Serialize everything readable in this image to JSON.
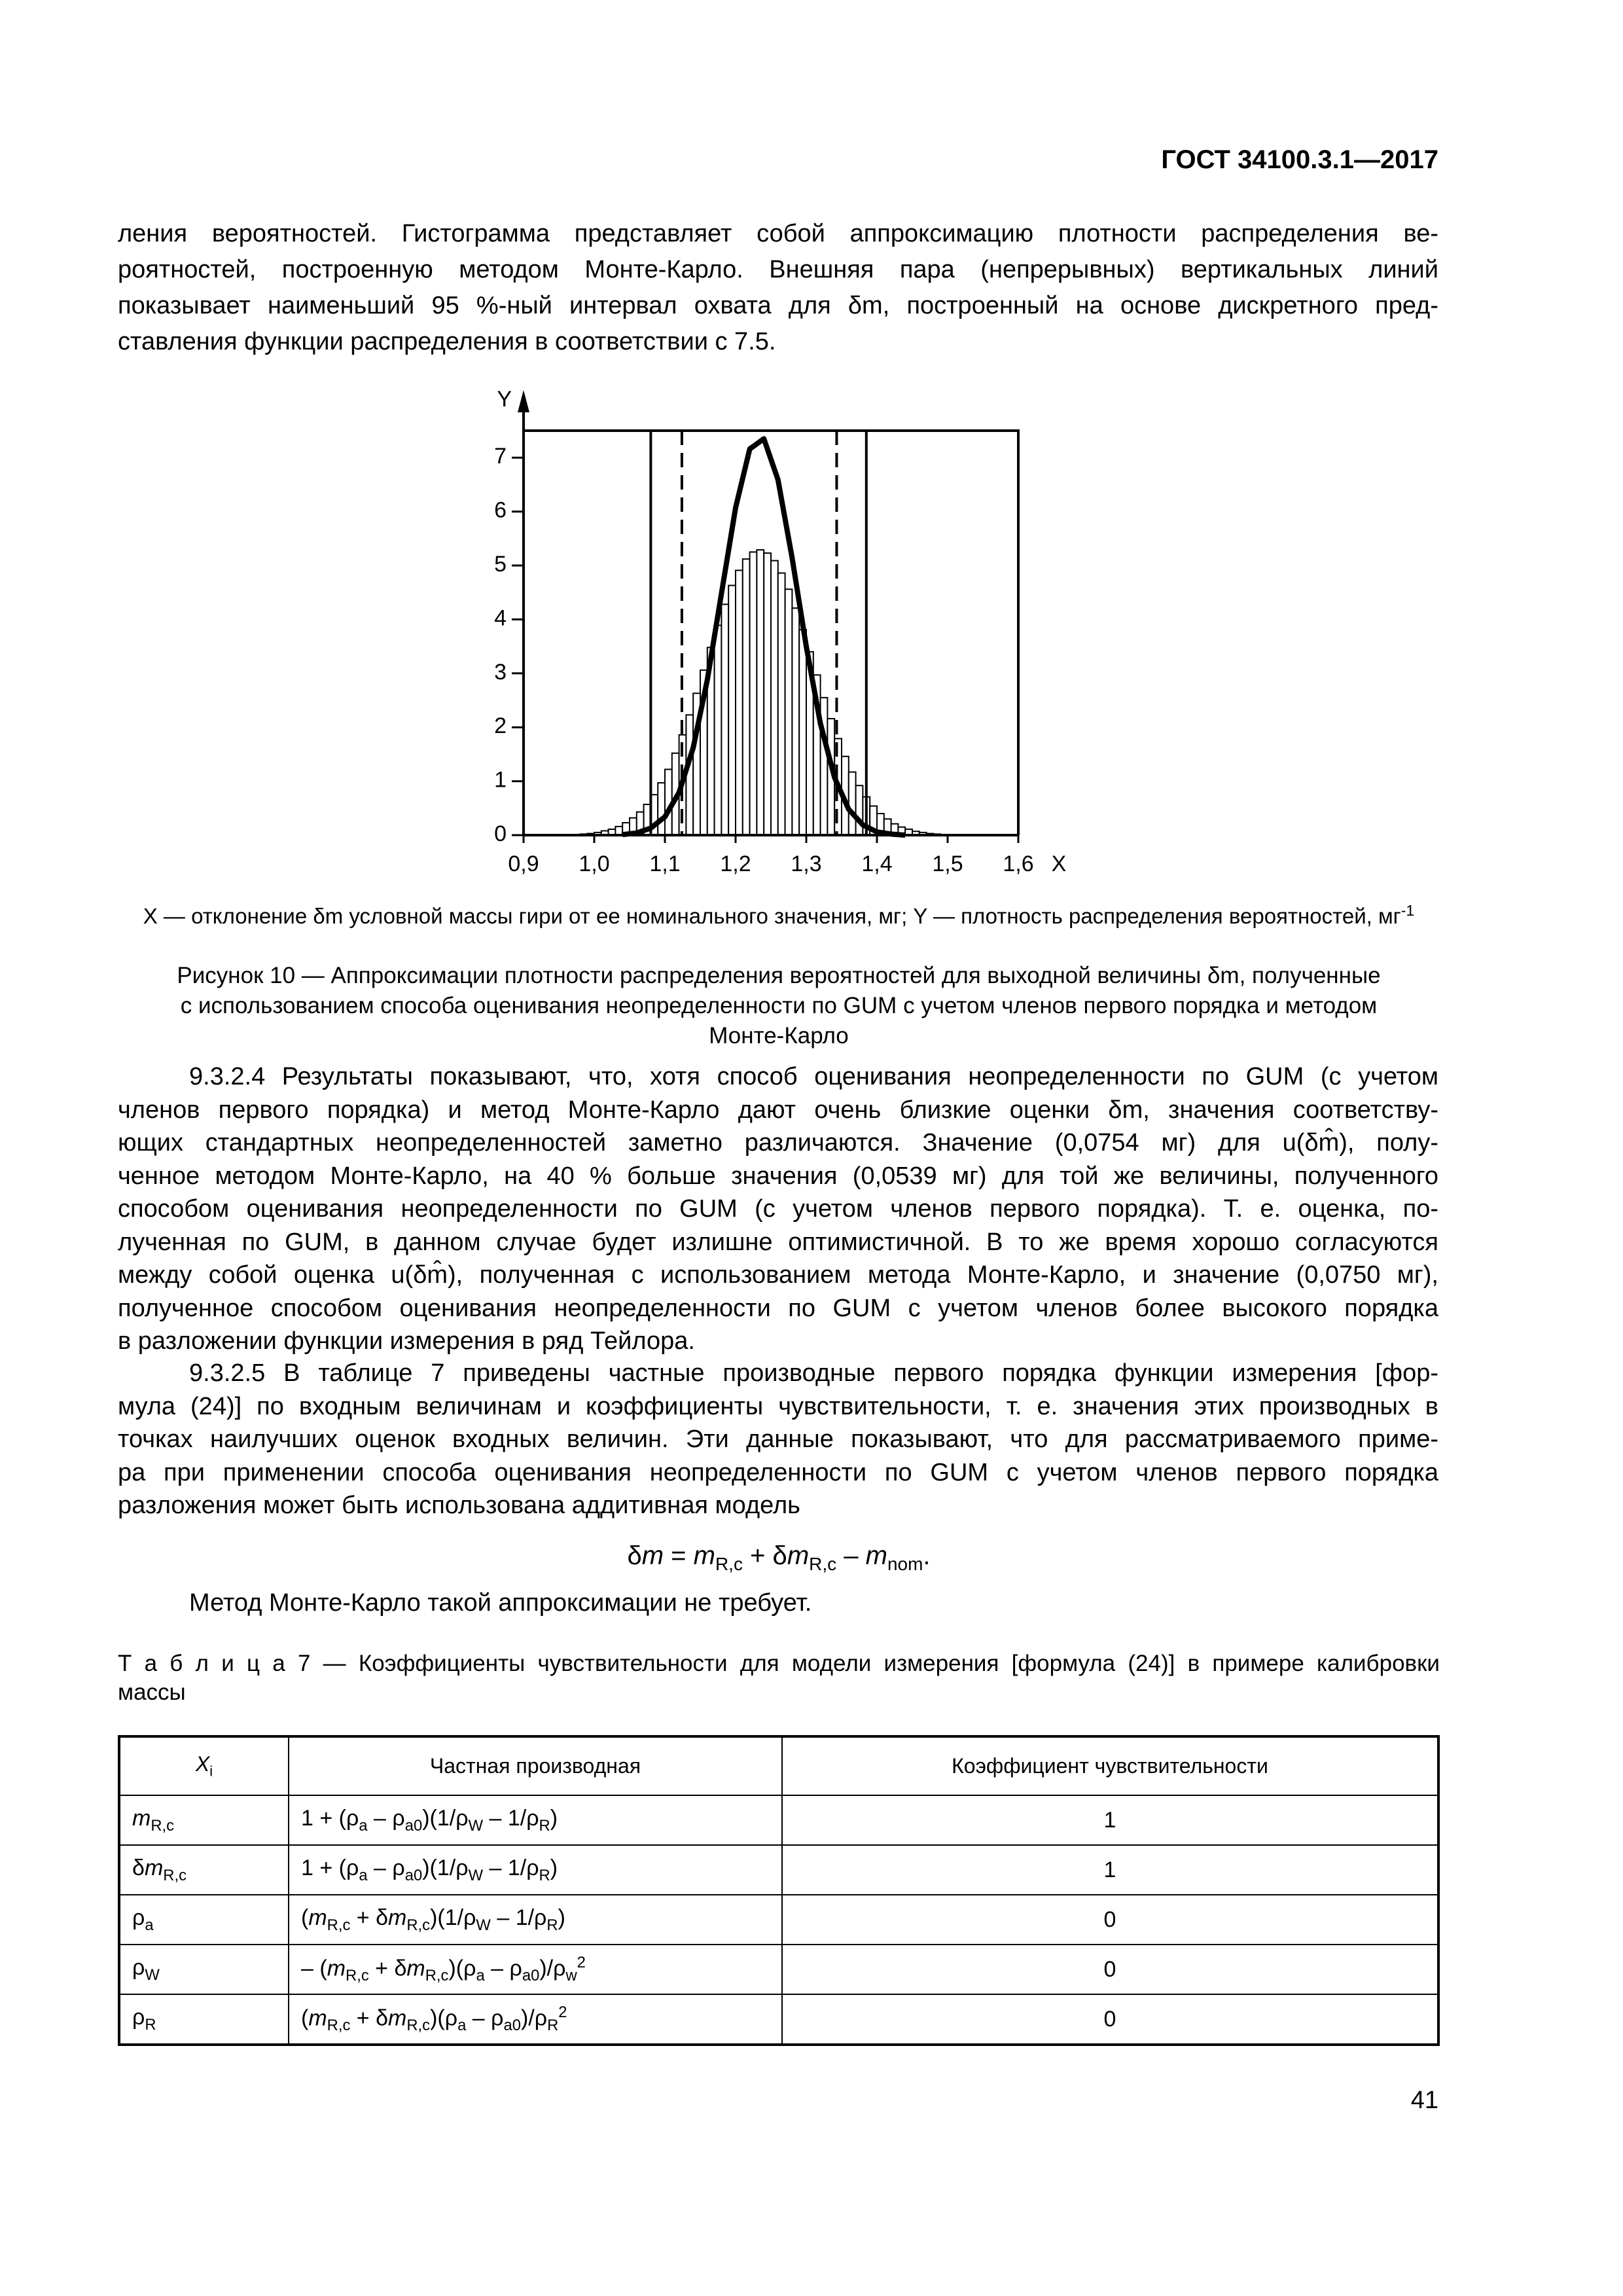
{
  "header": {
    "doc_id": "ГОСТ 34100.3.1—2017"
  },
  "paragraph_1": {
    "lines": [
      "ления вероятностей. Гистограмма представляет собой аппроксимацию плотности распределения ве-",
      "роятностей, построенную методом Монте-Карло. Внешняя пара (непрерывных) вертикальных линий",
      "показывает наименьший 95 %-ный интервал охвата для δm, построенный на основе дискретного пред-",
      "ставления функции распределения в соответствии с 7.5."
    ]
  },
  "figure": {
    "chart_data": {
      "type": "histogram",
      "x_label": "X",
      "y_label": "Y",
      "xlim": [
        0.9,
        1.6
      ],
      "ylim": [
        0,
        7.5
      ],
      "xticks": [
        {
          "value": 0.9,
          "label": "0,9"
        },
        {
          "value": 1.0,
          "label": "1,0"
        },
        {
          "value": 1.1,
          "label": "1,1"
        },
        {
          "value": 1.2,
          "label": "1,2"
        },
        {
          "value": 1.3,
          "label": "1,3"
        },
        {
          "value": 1.4,
          "label": "1,4"
        },
        {
          "value": 1.5,
          "label": "1,5"
        },
        {
          "value": 1.6,
          "label": "1,6"
        }
      ],
      "yticks": [
        0,
        1,
        2,
        3,
        4,
        5,
        6,
        7
      ],
      "bins": [
        0.98,
        0.99,
        1.0,
        1.01,
        1.02,
        1.03,
        1.04,
        1.05,
        1.06,
        1.07,
        1.08,
        1.09,
        1.1,
        1.11,
        1.12,
        1.13,
        1.14,
        1.15,
        1.16,
        1.17,
        1.18,
        1.19,
        1.2,
        1.21,
        1.22,
        1.23,
        1.24,
        1.25,
        1.26,
        1.27,
        1.28,
        1.29,
        1.3,
        1.31,
        1.32,
        1.33,
        1.34,
        1.35,
        1.36,
        1.37,
        1.38,
        1.39,
        1.4,
        1.41,
        1.42,
        1.43,
        1.44,
        1.45,
        1.46,
        1.47,
        1.48,
        1.49
      ],
      "counts": [
        0.02,
        0.03,
        0.05,
        0.08,
        0.11,
        0.16,
        0.23,
        0.32,
        0.43,
        0.57,
        0.75,
        0.97,
        1.22,
        1.52,
        1.86,
        2.23,
        2.63,
        3.06,
        3.48,
        3.89,
        4.28,
        4.63,
        4.91,
        5.12,
        5.25,
        5.29,
        5.23,
        5.09,
        4.86,
        4.56,
        4.21,
        3.81,
        3.4,
        2.97,
        2.55,
        2.16,
        1.79,
        1.46,
        1.17,
        0.92,
        0.71,
        0.54,
        0.4,
        0.3,
        0.21,
        0.15,
        0.11,
        0.07,
        0.05,
        0.03,
        0.02
      ],
      "bar_color": "#ffffff",
      "curve": {
        "color": "#000000",
        "x": [
          1.04,
          1.06,
          1.08,
          1.1,
          1.12,
          1.14,
          1.16,
          1.18,
          1.2,
          1.22,
          1.24,
          1.26,
          1.28,
          1.3,
          1.32,
          1.34,
          1.36,
          1.38,
          1.4,
          1.42,
          1.44
        ],
        "values": [
          0.01,
          0.04,
          0.13,
          0.34,
          0.79,
          1.62,
          2.88,
          4.48,
          6.07,
          7.16,
          7.35,
          6.59,
          5.14,
          3.5,
          2.07,
          1.07,
          0.48,
          0.19,
          0.06,
          0.02,
          0.0
        ]
      },
      "interval_lines_solid": [
        1.08,
        1.385
      ],
      "interval_lines_dashed": [
        1.124,
        1.343
      ]
    },
    "legend_note": "X — отклонение δm условной массы гири от ее номинального значения, мг; Y — плотность распределения вероятностей, мг",
    "legend_note_sup": "-1",
    "caption_lines": [
      "Рисунок 10 — Аппроксимации плотности распределения вероятностей для выходной величины δm, полученные",
      "с использованием способа оценивания неопределенности по GUM с учетом членов первого порядка и методом",
      "Монте-Карло"
    ]
  },
  "section_9_3_2_4": {
    "lines": [
      "9.3.2.4 Результаты показывают, что, хотя способ оценивания неопределенности по GUM (с учетом",
      "членов первого порядка) и метод Монте-Карло дают очень близкие оценки δm, значения соответству-",
      "ющих стандартных неопределенностей заметно различаются. Значение (0,0754 мг) для u(δm̂), полу-",
      "ченное методом Монте-Карло, на 40 % больше значения (0,0539 мг) для той же величины, полученного",
      "способом оценивания неопределенности по GUM (с учетом членов первого порядка). Т. е. оценка, по-",
      "лученная по GUM, в данном случае будет излишне оптимистичной. В то же время хорошо согласуются",
      "между собой оценка u(δm̂), полученная с использованием метода Монте-Карло, и значение (0,0750 мг),",
      "полученное способом оценивания неопределенности по GUM с учетом членов более высокого порядка",
      "в разложении функции измерения в ряд Тейлора."
    ]
  },
  "section_9_3_2_5": {
    "lines": [
      "9.3.2.5 В таблице 7 приведены частные производные первого порядка функции измерения [фор-",
      "мула (24)] по входным величинам и коэффициенты чувствительности, т. е. значения этих производных в",
      "точках наилучших оценок входных величин. Эти данные показывают, что для рассматриваемого приме-",
      "ра при применении способа оценивания неопределенности по GUM с учетом членов первого порядка",
      "разложения может быть использована аддитивная модель"
    ]
  },
  "formula": [
    "δ",
    {
      "i": "m"
    },
    " = ",
    {
      "i": "m"
    },
    {
      "sub": "R,c"
    },
    " + δ",
    {
      "i": "m"
    },
    {
      "sub": "R,c"
    },
    " – ",
    {
      "i": "m"
    },
    {
      "sub": "nom"
    },
    "."
  ],
  "closing": "Метод Монте-Карло такой аппроксимации не требует.",
  "table": {
    "caption_lines": [
      "Т а б л и ц а  7 — Коэффициенты чувствительности для модели измерения [формула (24)] в примере калибровки",
      "массы"
    ],
    "header": [
      [
        {
          "i": "X"
        },
        {
          "sub": "i"
        }
      ],
      [
        "Частная производная"
      ],
      [
        "Коэффициент чувствительности"
      ]
    ],
    "rows": [
      [
        [
          {
            "i": "m"
          },
          {
            "sub": "R,c"
          }
        ],
        [
          "1 + (ρ",
          {
            "sub": "a"
          },
          " – ρ",
          {
            "sub": "a0"
          },
          ")(1/ρ",
          {
            "sub": "W"
          },
          " – 1/ρ",
          {
            "sub": "R"
          },
          ")"
        ],
        [
          "1"
        ]
      ],
      [
        [
          "δ",
          {
            "i": "m"
          },
          {
            "sub": "R,c"
          }
        ],
        [
          "1 + (ρ",
          {
            "sub": "a"
          },
          " – ρ",
          {
            "sub": "a0"
          },
          ")(1/ρ",
          {
            "sub": "W"
          },
          " – 1/ρ",
          {
            "sub": "R"
          },
          ")"
        ],
        [
          "1"
        ]
      ],
      [
        [
          "ρ",
          {
            "sub": "a"
          }
        ],
        [
          "(",
          {
            "i": "m"
          },
          {
            "sub": "R,c"
          },
          " + δ",
          {
            "i": "m"
          },
          {
            "sub": "R,c"
          },
          ")(1/ρ",
          {
            "sub": "W"
          },
          " – 1/ρ",
          {
            "sub": "R"
          },
          ")"
        ],
        [
          "0"
        ]
      ],
      [
        [
          "ρ",
          {
            "sub": "W"
          }
        ],
        [
          "– (",
          {
            "i": "m"
          },
          {
            "sub": "R,c"
          },
          " + δ",
          {
            "i": "m"
          },
          {
            "sub": "R,c"
          },
          ")(ρ",
          {
            "sub": "a"
          },
          " – ρ",
          {
            "sub": "a0"
          },
          ")/ρ",
          {
            "sub": "w"
          },
          {
            "sup": "2"
          }
        ],
        [
          "0"
        ]
      ],
      [
        [
          "ρ",
          {
            "sub": "R"
          }
        ],
        [
          "(",
          {
            "i": "m"
          },
          {
            "sub": "R,c"
          },
          " + δ",
          {
            "i": "m"
          },
          {
            "sub": "R,c"
          },
          ")(ρ",
          {
            "sub": "a"
          },
          " – ρ",
          {
            "sub": "a0"
          },
          ")/ρ",
          {
            "sub": "R"
          },
          {
            "sup": "2"
          }
        ],
        [
          "0"
        ]
      ]
    ]
  },
  "page_number": "41"
}
